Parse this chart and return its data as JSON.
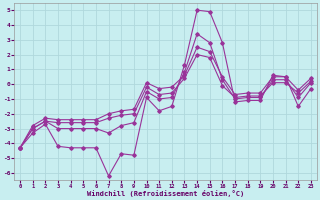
{
  "xlabel": "Windchill (Refroidissement éolien,°C)",
  "bg_color": "#c8eef0",
  "grid_color": "#b0d8dc",
  "line_color": "#993399",
  "xlim": [
    -0.5,
    23.5
  ],
  "ylim": [
    -6.5,
    5.5
  ],
  "yticks": [
    -6,
    -5,
    -4,
    -3,
    -2,
    -1,
    0,
    1,
    2,
    3,
    4,
    5
  ],
  "xticks": [
    0,
    1,
    2,
    3,
    4,
    5,
    6,
    7,
    8,
    9,
    10,
    11,
    12,
    13,
    14,
    15,
    16,
    17,
    18,
    19,
    20,
    21,
    22,
    23
  ],
  "series": [
    {
      "x": [
        0,
        1,
        2,
        3,
        4,
        5,
        6,
        7,
        8,
        9,
        10,
        11,
        12,
        13,
        14,
        15,
        16,
        17,
        18,
        19,
        20,
        21,
        22,
        23
      ],
      "y": [
        -4.3,
        -3.3,
        -2.7,
        -4.2,
        -4.3,
        -4.3,
        -4.3,
        -6.2,
        -4.7,
        -4.8,
        -0.9,
        -1.8,
        -1.5,
        1.3,
        5.0,
        4.9,
        2.8,
        -1.2,
        -1.1,
        -1.1,
        0.6,
        0.5,
        -1.5,
        -0.3
      ]
    },
    {
      "x": [
        0,
        1,
        2,
        3,
        4,
        5,
        6,
        7,
        8,
        9,
        10,
        11,
        12,
        13,
        14,
        15,
        16,
        17,
        18,
        19,
        20,
        21,
        22,
        23
      ],
      "y": [
        -4.3,
        -3.0,
        -2.5,
        -3.0,
        -3.0,
        -3.0,
        -3.0,
        -3.3,
        -2.8,
        -2.6,
        -0.5,
        -1.0,
        -0.9,
        0.8,
        3.4,
        2.8,
        0.3,
        -1.0,
        -0.9,
        -0.9,
        0.3,
        0.3,
        -0.9,
        0.1
      ]
    },
    {
      "x": [
        0,
        1,
        2,
        3,
        4,
        5,
        6,
        7,
        8,
        9,
        10,
        11,
        12,
        13,
        14,
        15,
        16,
        17,
        18,
        19,
        20,
        21,
        22,
        23
      ],
      "y": [
        -4.3,
        -3.0,
        -2.5,
        -2.6,
        -2.6,
        -2.6,
        -2.6,
        -2.3,
        -2.1,
        -2.0,
        -0.2,
        -0.7,
        -0.6,
        0.4,
        2.0,
        1.8,
        -0.1,
        -0.9,
        -0.8,
        -0.8,
        0.1,
        0.1,
        -0.6,
        0.2
      ]
    },
    {
      "x": [
        0,
        1,
        2,
        3,
        4,
        5,
        6,
        7,
        8,
        9,
        10,
        11,
        12,
        13,
        14,
        15,
        16,
        17,
        18,
        19,
        20,
        21,
        22,
        23
      ],
      "y": [
        -4.3,
        -2.8,
        -2.3,
        -2.4,
        -2.4,
        -2.4,
        -2.4,
        -2.0,
        -1.8,
        -1.7,
        0.1,
        -0.3,
        -0.2,
        0.6,
        2.5,
        2.2,
        0.5,
        -0.7,
        -0.6,
        -0.6,
        0.5,
        0.5,
        -0.4,
        0.4
      ]
    }
  ]
}
